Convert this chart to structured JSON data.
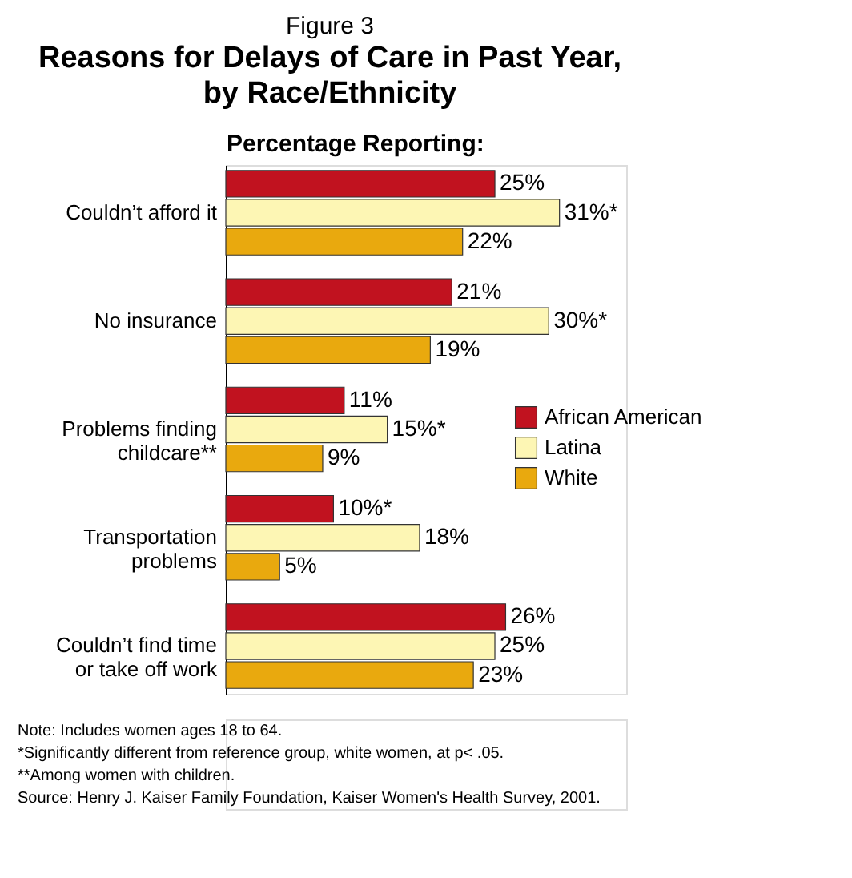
{
  "chart_data": {
    "type": "bar",
    "orientation": "horizontal",
    "title": "Figure 3",
    "subtitle": "Reasons for Delays of Care in Past Year,\nby Race/Ethnicity",
    "xlabel": "Percentage Reporting:",
    "tick_labels": "y",
    "legend": "right",
    "grid": false,
    "categories": [
      "Couldn’t afford it",
      "No insurance",
      "Problems finding\nchildcare**",
      "Transportation\nproblems",
      "Couldn’t find time\nor take off work"
    ],
    "series": [
      {
        "name": "African American",
        "color": "#c1121f",
        "values": [
          25,
          21,
          11,
          10,
          26
        ],
        "value_labels": [
          "25%",
          "21%",
          "11%",
          "10%*",
          "26%"
        ]
      },
      {
        "name": "Latina",
        "color": "#fdf6b4",
        "values": [
          31,
          30,
          15,
          18,
          25
        ],
        "value_labels": [
          "31%*",
          "30%*",
          "15%*",
          "18%",
          "25%"
        ]
      },
      {
        "name": "White",
        "color": "#e9a90e",
        "values": [
          22,
          19,
          9,
          5,
          23
        ],
        "value_labels": [
          "22%",
          "19%",
          "9%",
          "5%",
          "23%"
        ]
      }
    ],
    "annotations": [
      "Note: Includes women ages 18 to 64.",
      "*Significantly different from reference group, white women, at p< .05.",
      "**Among women with children.",
      "Source: Henry J. Kaiser Family Foundation, Kaiser Women's Health Survey, 2001."
    ]
  }
}
